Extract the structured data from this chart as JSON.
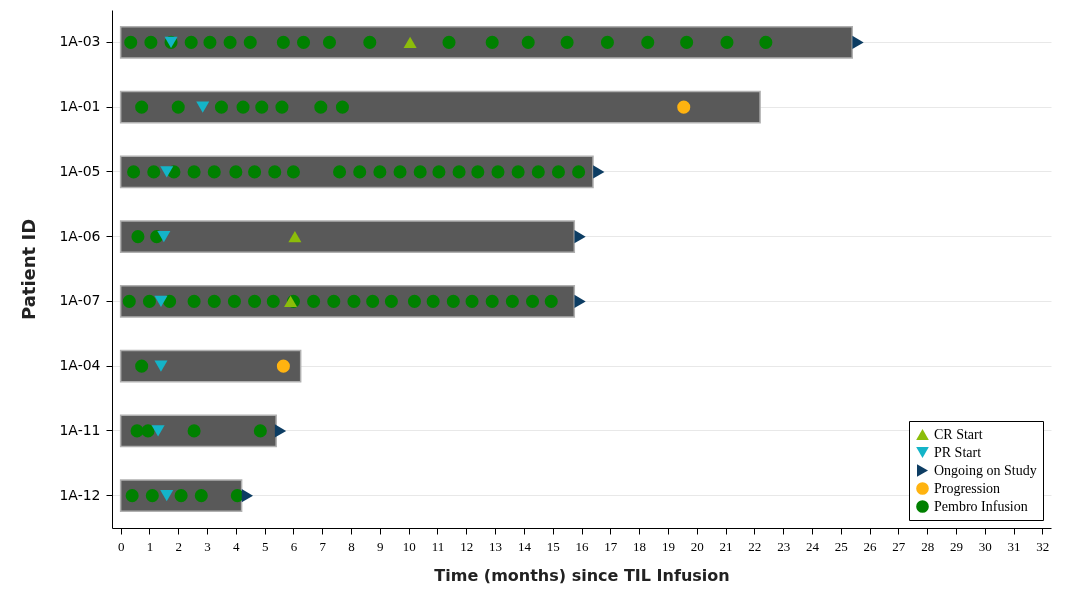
{
  "chart_data": {
    "type": "bar",
    "orientation": "horizontal",
    "xlabel": "Time (months) since TIL Infusion",
    "ylabel": "Patient ID",
    "categories": [
      "1A-03",
      "1A-01",
      "1A-05",
      "1A-06",
      "1A-07",
      "1A-04",
      "1A-11",
      "1A-12"
    ],
    "xlim": [
      -0.3,
      32.3
    ],
    "xticks": [
      0,
      1,
      2,
      3,
      4,
      5,
      6,
      7,
      8,
      9,
      10,
      11,
      12,
      13,
      14,
      15,
      16,
      17,
      18,
      19,
      20,
      21,
      22,
      23,
      24,
      25,
      26,
      27,
      28,
      29,
      30,
      31,
      32
    ],
    "grid": "y",
    "legend": "bottom right",
    "series": [
      {
        "type": "bar",
        "color": "#595959",
        "values": [
          25.4,
          22.2,
          16.4,
          15.75,
          15.75,
          6.25,
          5.4,
          4.2
        ]
      },
      {
        "name": "CR Start",
        "type": "scatter",
        "marker": "triangle-up",
        "color": "#8cbd0a",
        "values": [
          10.05,
          null,
          null,
          6.05,
          5.9,
          null,
          null,
          null
        ]
      },
      {
        "name": "PR Start",
        "type": "scatter",
        "marker": "triangle-down",
        "color": "#14b4c8",
        "values": [
          1.75,
          2.85,
          1.6,
          1.5,
          1.4,
          1.4,
          1.3,
          1.6
        ]
      },
      {
        "name": "Ongoing on Study",
        "type": "scatter",
        "marker": "triangle-right",
        "color": "#0d3d63",
        "values": [
          25.6,
          null,
          16.6,
          15.95,
          15.95,
          null,
          5.55,
          4.4
        ]
      },
      {
        "name": "Progression",
        "type": "scatter",
        "marker": "circle",
        "color": "#ffb310",
        "values": [
          null,
          19.55,
          null,
          null,
          null,
          5.65,
          null,
          null
        ]
      },
      {
        "name": "Pembro Infusion",
        "type": "scatter",
        "marker": "circle",
        "color": "#008000",
        "values": [
          0.35,
          0.73,
          0.45,
          0.6,
          0.3,
          0.73,
          0.57,
          0.4
        ]
      },
      {
        "type": "scatter",
        "marker": "circle",
        "color": "#008000",
        "values": [
          1.05,
          2.0,
          1.15,
          1.25,
          1.0,
          null,
          0.95,
          1.1
        ]
      },
      {
        "type": "scatter",
        "marker": "circle",
        "color": "#008000",
        "values": [
          1.75,
          3.5,
          1.85,
          null,
          1.7,
          null,
          2.55,
          2.1
        ]
      },
      {
        "type": "scatter",
        "marker": "circle",
        "color": "#008000",
        "values": [
          2.45,
          4.25,
          2.55,
          null,
          2.55,
          null,
          4.85,
          2.8
        ]
      },
      {
        "type": "scatter",
        "marker": "circle",
        "color": "#008000",
        "values": [
          3.1,
          4.9,
          3.25,
          null,
          3.25,
          null,
          null,
          4.05
        ]
      },
      {
        "type": "scatter",
        "marker": "circle",
        "color": "#008000",
        "values": [
          3.8,
          5.6,
          4.0,
          null,
          3.95,
          null,
          null,
          null
        ]
      },
      {
        "type": "scatter",
        "marker": "circle",
        "color": "#008000",
        "values": [
          4.5,
          6.95,
          4.65,
          null,
          4.65,
          null,
          null,
          null
        ]
      },
      {
        "type": "scatter",
        "marker": "circle",
        "color": "#008000",
        "values": [
          5.65,
          7.7,
          5.35,
          null,
          5.3,
          null,
          null,
          null
        ]
      },
      {
        "type": "scatter",
        "marker": "circle",
        "color": "#008000",
        "values": [
          6.35,
          null,
          6.0,
          null,
          6.0,
          null,
          null,
          null
        ]
      },
      {
        "type": "scatter",
        "marker": "circle",
        "color": "#008000",
        "values": [
          7.25,
          null,
          7.6,
          null,
          6.7,
          null,
          null,
          null
        ]
      },
      {
        "type": "scatter",
        "marker": "circle",
        "color": "#008000",
        "values": [
          8.65,
          null,
          8.3,
          null,
          7.4,
          null,
          null,
          null
        ]
      },
      {
        "type": "scatter",
        "marker": "circle",
        "color": "#008000",
        "values": [
          11.4,
          null,
          9.0,
          null,
          8.1,
          null,
          null,
          null
        ]
      },
      {
        "type": "scatter",
        "marker": "circle",
        "color": "#008000",
        "values": [
          12.9,
          null,
          9.7,
          null,
          8.75,
          null,
          null,
          null
        ]
      },
      {
        "type": "scatter",
        "marker": "circle",
        "color": "#008000",
        "values": [
          14.15,
          null,
          10.4,
          null,
          9.4,
          null,
          null,
          null
        ]
      },
      {
        "type": "scatter",
        "marker": "circle",
        "color": "#008000",
        "values": [
          15.5,
          null,
          11.05,
          null,
          10.2,
          null,
          null,
          null
        ]
      },
      {
        "type": "scatter",
        "marker": "circle",
        "color": "#008000",
        "values": [
          16.9,
          null,
          11.75,
          null,
          10.85,
          null,
          null,
          null
        ]
      },
      {
        "type": "scatter",
        "marker": "circle",
        "color": "#008000",
        "values": [
          18.3,
          null,
          12.4,
          null,
          11.55,
          null,
          null,
          null
        ]
      },
      {
        "type": "scatter",
        "marker": "circle",
        "color": "#008000",
        "values": [
          19.65,
          null,
          13.1,
          null,
          12.2,
          null,
          null,
          null
        ]
      },
      {
        "type": "scatter",
        "marker": "circle",
        "color": "#008000",
        "values": [
          21.05,
          null,
          13.8,
          null,
          12.9,
          null,
          null,
          null
        ]
      },
      {
        "type": "scatter",
        "marker": "circle",
        "color": "#008000",
        "values": [
          22.4,
          null,
          14.5,
          null,
          13.6,
          null,
          null,
          null
        ]
      },
      {
        "type": "scatter",
        "marker": "circle",
        "color": "#008000",
        "values": [
          null,
          null,
          15.2,
          null,
          14.3,
          null,
          null,
          null
        ]
      },
      {
        "type": "scatter",
        "marker": "circle",
        "color": "#008000",
        "values": [
          null,
          null,
          15.9,
          null,
          14.95,
          null,
          null,
          null
        ]
      }
    ]
  }
}
